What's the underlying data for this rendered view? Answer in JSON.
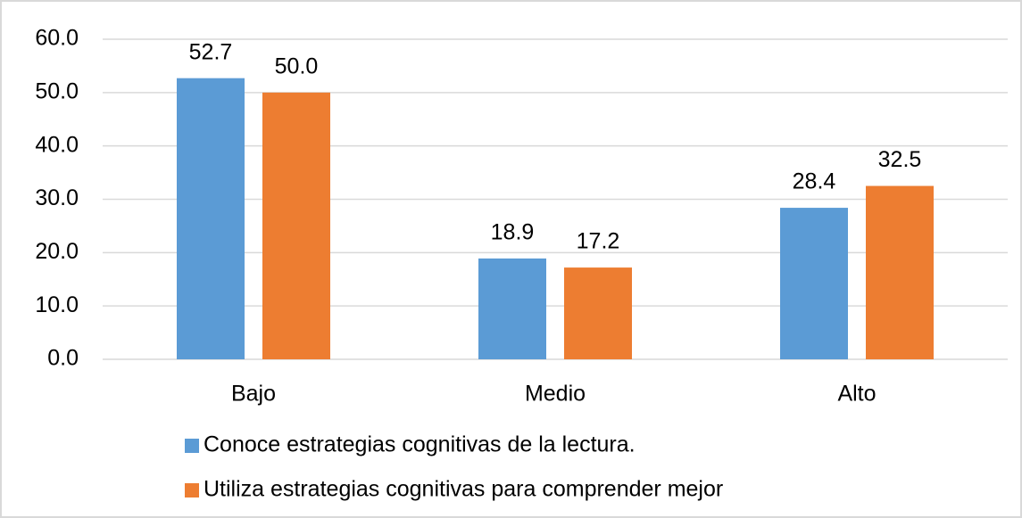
{
  "chart_data": {
    "type": "bar",
    "categories": [
      "Bajo",
      "Medio",
      "Alto"
    ],
    "series": [
      {
        "name": "Conoce estrategias cognitivas de la lectura.",
        "color": "#5b9bd5",
        "values": [
          52.7,
          18.9,
          28.4
        ],
        "value_labels": [
          "52.7",
          "18.9",
          "28.4"
        ]
      },
      {
        "name": "Utiliza estrategias cognitivas para comprender mejor",
        "color": "#ed7d31",
        "values": [
          50.0,
          17.2,
          32.5
        ],
        "value_labels": [
          "50.0",
          "17.2",
          "32.5"
        ]
      }
    ],
    "ylim": [
      0,
      60
    ],
    "yticks": [
      {
        "value": 0,
        "label": "0.0"
      },
      {
        "value": 10,
        "label": "10.0"
      },
      {
        "value": 20,
        "label": "20.0"
      },
      {
        "value": 30,
        "label": "30.0"
      },
      {
        "value": 40,
        "label": "40.0"
      },
      {
        "value": 50,
        "label": "50.0"
      },
      {
        "value": 60,
        "label": "60.0"
      }
    ],
    "grid": true,
    "legend": "bottom"
  }
}
